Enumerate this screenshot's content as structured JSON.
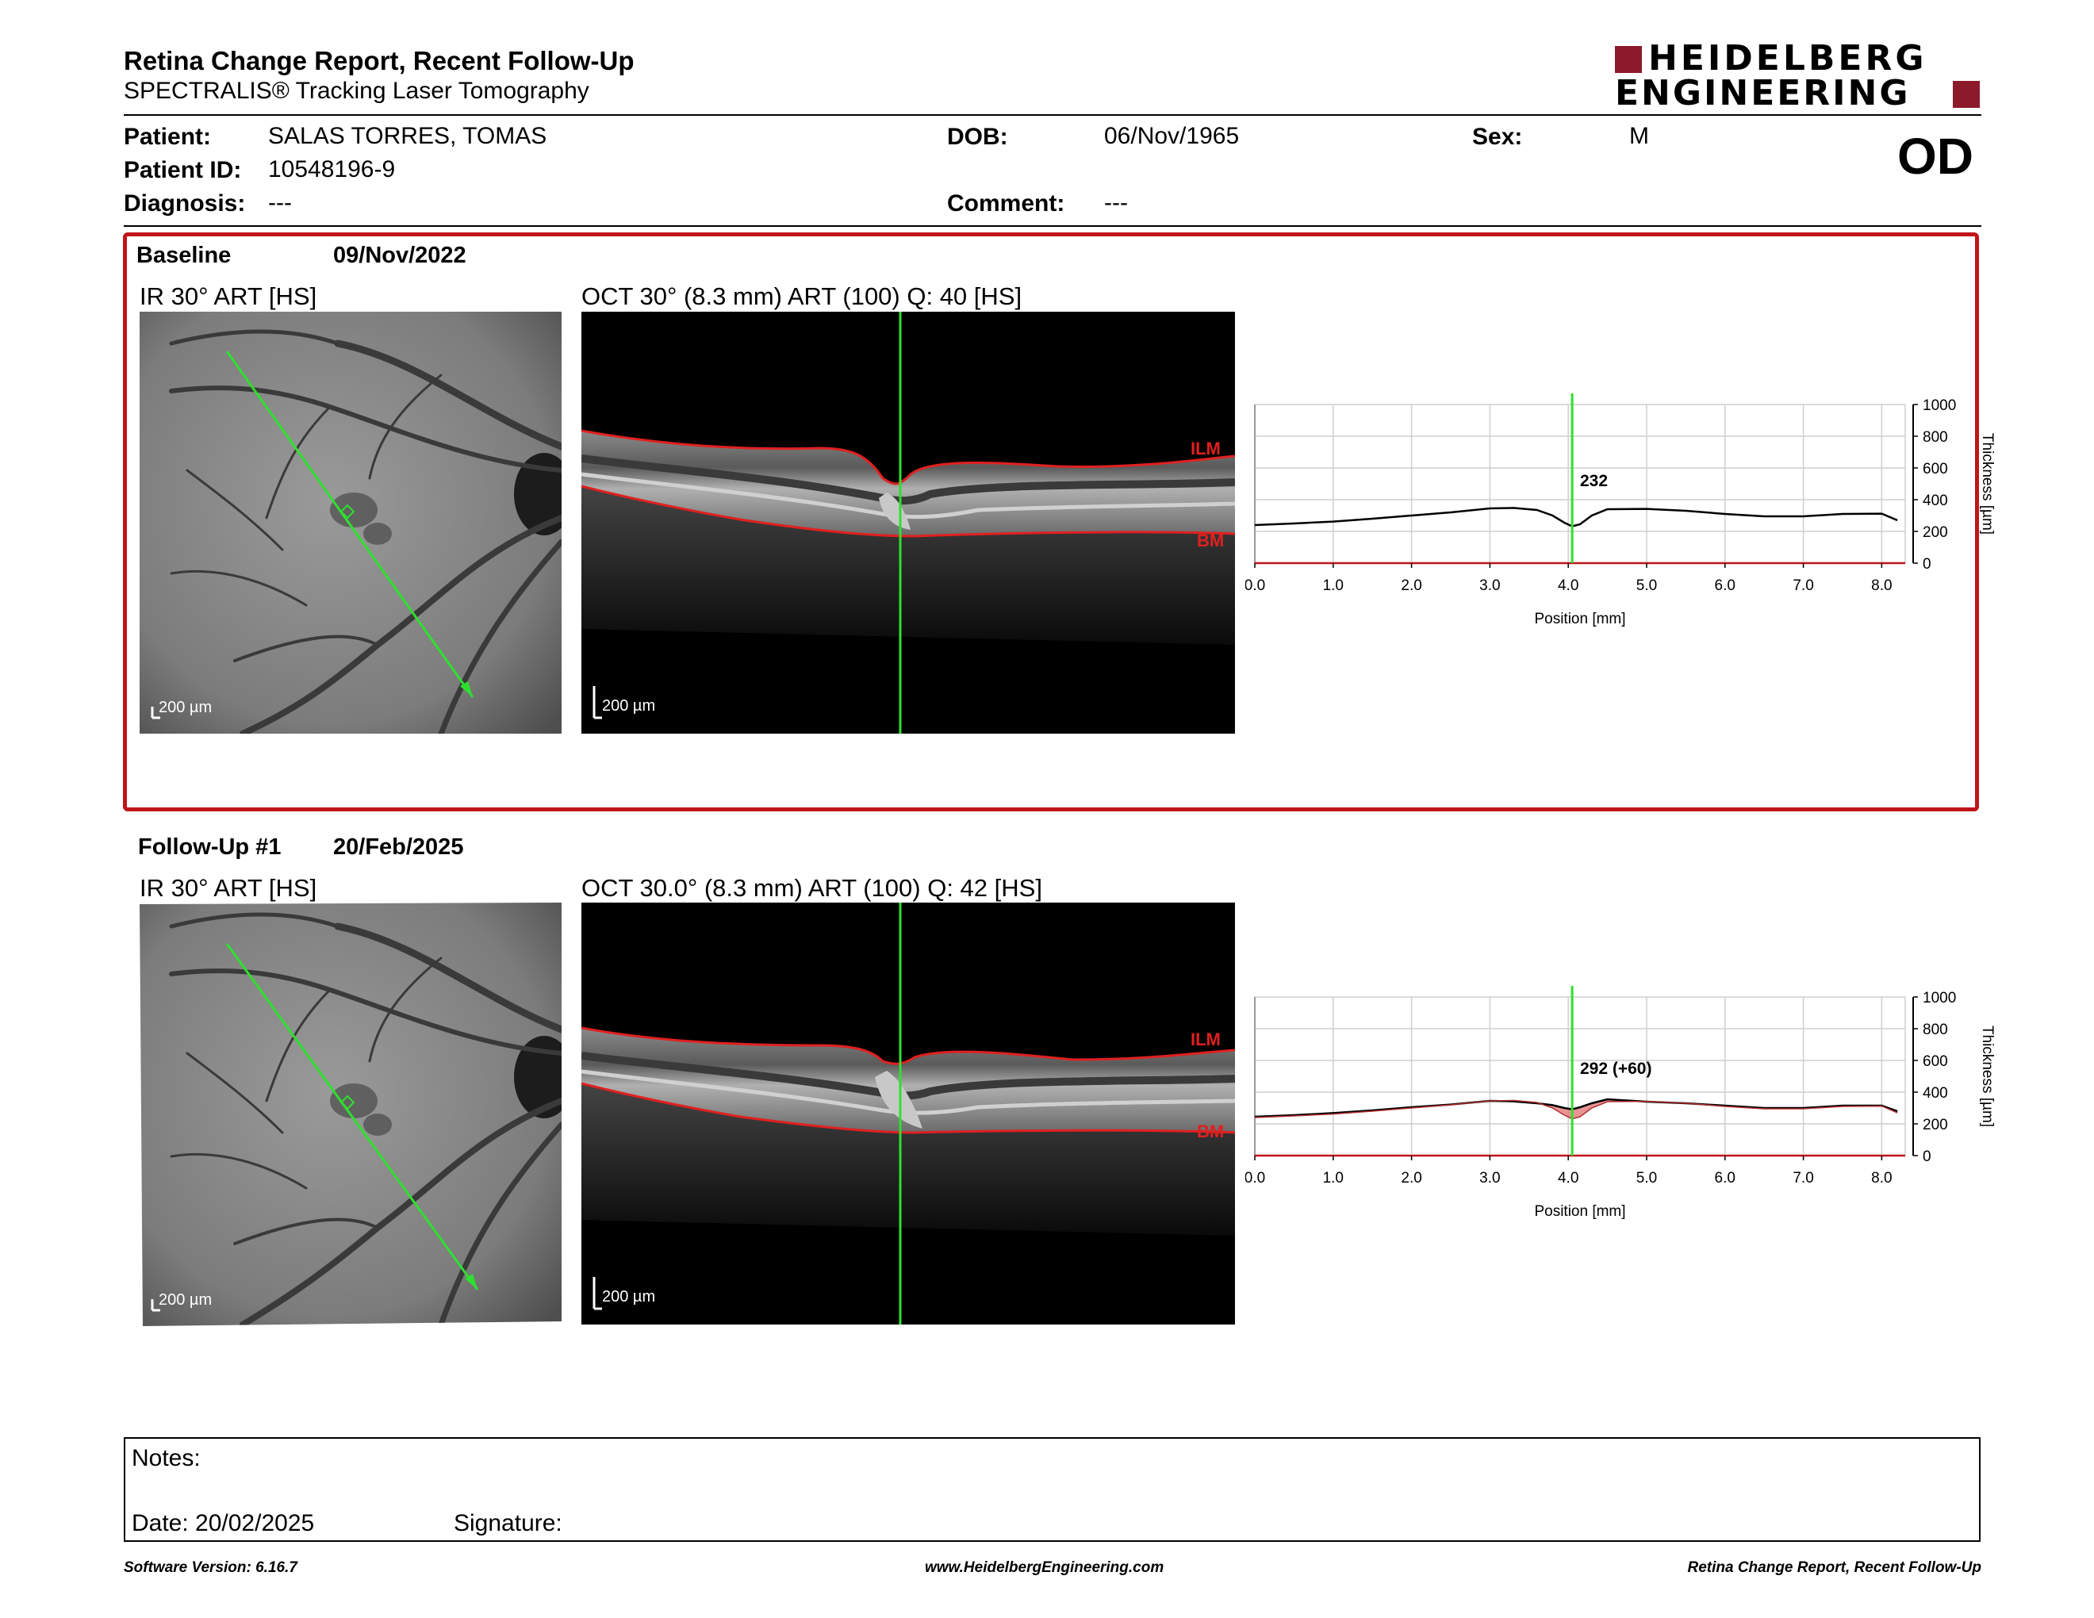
{
  "header": {
    "title": "Retina Change Report, Recent Follow-Up",
    "subtitle": "SPECTRALIS® Tracking Laser Tomography",
    "logo_line1": "HEIDELBERG",
    "logo_line2": "ENGINEERING",
    "brand_color": "#8b1a2b"
  },
  "patient": {
    "patient_label": "Patient:",
    "patient_value": "SALAS TORRES, TOMAS",
    "id_label": "Patient ID:",
    "id_value": "10548196-9",
    "diagnosis_label": "Diagnosis:",
    "diagnosis_value": "---",
    "dob_label": "DOB:",
    "dob_value": "06/Nov/1965",
    "comment_label": "Comment:",
    "comment_value": "---",
    "sex_label": "Sex:",
    "sex_value": "M",
    "eye": "OD"
  },
  "baseline": {
    "label": "Baseline",
    "date": "09/Nov/2022",
    "ir_title": "IR 30° ART [HS]",
    "oct_title": "OCT 30° (8.3 mm) ART (100) Q: 40 [HS]",
    "scale_label": "200 µm",
    "ilm_label": "ILM",
    "bm_label": "BM",
    "marker_value": "232"
  },
  "followup": {
    "label": "Follow-Up #1",
    "date": "20/Feb/2025",
    "ir_title": "IR 30° ART [HS]",
    "oct_title": "OCT 30.0° (8.3 mm) ART (100) Q: 42 [HS]",
    "scale_label": "200 µm",
    "ilm_label": "ILM",
    "bm_label": "BM",
    "marker_value": "292 (+60)"
  },
  "chart_data": [
    {
      "type": "line",
      "xlabel": "Position [mm]",
      "ylabel": "Thickness [µm]",
      "xlim": [
        0,
        8.3
      ],
      "ylim": [
        0,
        1000
      ],
      "x_ticks": [
        0.0,
        1.0,
        2.0,
        3.0,
        4.0,
        5.0,
        6.0,
        7.0,
        8.0
      ],
      "x_tick_labels": [
        "0.0",
        "1.0",
        "2.0",
        "3.0",
        "4.0",
        "5.0",
        "6.0",
        "7.0",
        "8.0"
      ],
      "y_ticks": [
        0,
        200,
        400,
        600,
        800,
        1000
      ],
      "y_tick_labels": [
        "0",
        "200",
        "400",
        "600",
        "800",
        "1000"
      ],
      "grid": true,
      "marker_x": 4.05,
      "marker_label": "232",
      "series": [
        {
          "x": [
            0.0,
            0.5,
            1.0,
            1.5,
            2.0,
            2.5,
            3.0,
            3.3,
            3.6,
            3.8,
            3.95,
            4.05,
            4.15,
            4.3,
            4.5,
            5.0,
            5.5,
            6.0,
            6.5,
            7.0,
            7.5,
            8.0,
            8.2
          ],
          "values": [
            240,
            250,
            262,
            280,
            300,
            320,
            345,
            348,
            335,
            300,
            255,
            232,
            245,
            300,
            340,
            342,
            330,
            310,
            295,
            295,
            310,
            312,
            270
          ]
        }
      ]
    },
    {
      "type": "line",
      "xlabel": "Position [mm]",
      "ylabel": "Thickness [µm]",
      "xlim": [
        0,
        8.3
      ],
      "ylim": [
        0,
        1000
      ],
      "x_ticks": [
        0.0,
        1.0,
        2.0,
        3.0,
        4.0,
        5.0,
        6.0,
        7.0,
        8.0
      ],
      "x_tick_labels": [
        "0.0",
        "1.0",
        "2.0",
        "3.0",
        "4.0",
        "5.0",
        "6.0",
        "7.0",
        "8.0"
      ],
      "y_ticks": [
        0,
        200,
        400,
        600,
        800,
        1000
      ],
      "y_tick_labels": [
        "0",
        "200",
        "400",
        "600",
        "800",
        "1000"
      ],
      "grid": true,
      "marker_x": 4.05,
      "marker_label": "292 (+60)",
      "fill_color": "#e07070",
      "series": [
        {
          "x": [
            0.0,
            0.5,
            1.0,
            1.5,
            2.0,
            2.5,
            3.0,
            3.3,
            3.6,
            3.8,
            3.95,
            4.05,
            4.15,
            4.3,
            4.5,
            5.0,
            5.5,
            6.0,
            6.5,
            7.0,
            7.5,
            8.0,
            8.2
          ],
          "values": [
            245,
            255,
            268,
            285,
            305,
            322,
            345,
            342,
            330,
            318,
            300,
            292,
            305,
            330,
            355,
            340,
            330,
            315,
            300,
            300,
            315,
            315,
            280
          ]
        },
        {
          "x": [
            0.0,
            0.5,
            1.0,
            1.5,
            2.0,
            2.5,
            3.0,
            3.3,
            3.6,
            3.8,
            3.95,
            4.05,
            4.15,
            4.3,
            4.5,
            5.0,
            5.5,
            6.0,
            6.5,
            7.0,
            7.5,
            8.0,
            8.2
          ],
          "values": [
            240,
            250,
            262,
            280,
            300,
            320,
            345,
            348,
            335,
            300,
            255,
            232,
            245,
            300,
            340,
            342,
            330,
            310,
            295,
            295,
            310,
            312,
            270
          ]
        }
      ]
    }
  ],
  "notes": {
    "notes_label": "Notes:",
    "date_label": "Date: 20/02/2025",
    "signature_label": "Signature:"
  },
  "footer": {
    "software": "Software Version: 6.16.7",
    "website": "www.HeidelbergEngineering.com",
    "report_name": "Retina Change Report, Recent Follow-Up"
  }
}
